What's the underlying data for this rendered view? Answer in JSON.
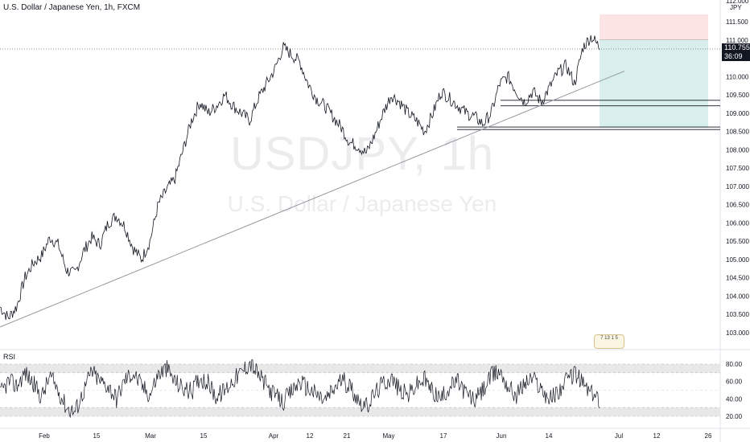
{
  "header": {
    "title": "U.S. Dollar / Japanese Yen, 1h, FXCM"
  },
  "watermark": {
    "symbol": "USDJPY, 1h",
    "name": "U.S. Dollar / Japanese Yen"
  },
  "price_tag": {
    "price": "110.755",
    "countdown": "36:09"
  },
  "rsi": {
    "label": "RSI"
  },
  "corner_labels": [
    "112.000",
    "JPY"
  ],
  "badge": {
    "text": "7 13 1 5"
  },
  "colors": {
    "risk_zone": "#fce4e5",
    "reward_zone": "#d9efee",
    "series": "#131722",
    "rsi_band": "#e8e8e8"
  },
  "chart_data": [
    {
      "type": "line",
      "title": "U.S. Dollar / Japanese Yen, 1h, FXCM",
      "ylim": [
        102.5,
        112.0
      ],
      "y_ticks": [
        103.0,
        103.5,
        104.0,
        104.5,
        105.0,
        105.5,
        106.0,
        106.5,
        107.0,
        107.5,
        108.0,
        108.5,
        109.0,
        109.5,
        110.0,
        110.5,
        111.0,
        111.5
      ],
      "y_tick_labels": [
        "103.000",
        "103.500",
        "104.000",
        "104.500",
        "105.000",
        "105.500",
        "106.000",
        "106.500",
        "107.000",
        "107.500",
        "108.000",
        "108.500",
        "109.000",
        "109.500",
        "110.000",
        "110.500",
        "111.000",
        "111.500"
      ],
      "x_tick_labels": [
        "Feb",
        "15",
        "Mar",
        "15",
        "Apr",
        "12",
        "21",
        "May",
        "17",
        "Jun",
        "14",
        "Jul",
        "12",
        "26"
      ],
      "series": [
        {
          "values": [
            103.7,
            103.4,
            103.7,
            104.5,
            104.9,
            105.1,
            105.6,
            105.4,
            104.7,
            104.6,
            105.2,
            105.6,
            105.4,
            106.0,
            106.2,
            105.9,
            105.3,
            105.0,
            105.5,
            106.5,
            106.9,
            107.2,
            108.0,
            108.8,
            109.3,
            109.0,
            109.2,
            109.5,
            109.2,
            109.0,
            108.8,
            109.4,
            109.8,
            110.2,
            110.8,
            110.6,
            110.4,
            109.8,
            109.4,
            109.2,
            108.9,
            108.6,
            108.2,
            108.1,
            107.9,
            108.4,
            109.0,
            109.5,
            109.3,
            109.0,
            108.8,
            108.5,
            109.0,
            109.6,
            109.4,
            109.2,
            109.0,
            108.9,
            108.7,
            109.0,
            109.8,
            110.0,
            109.6,
            109.3,
            109.6,
            109.3,
            109.7,
            110.1,
            110.3,
            109.8,
            110.8,
            111.1,
            110.8
          ]
        }
      ],
      "overlays": {
        "trendline": {
          "from": [
            "Feb",
            103.15
          ],
          "to": [
            "Jun 26",
            110.15
          ]
        },
        "current_price": 110.755,
        "support_lines": [
          109.35,
          109.2,
          108.62,
          108.55
        ],
        "long_position": {
          "entry": 111.0,
          "stop": 111.7,
          "target": 108.6
        }
      }
    },
    {
      "type": "line",
      "title": "RSI",
      "ylim": [
        14,
        90
      ],
      "y_ticks": [
        20,
        40,
        60,
        80
      ],
      "y_tick_labels": [
        "20.00",
        "40.00",
        "60.00",
        "80.00"
      ],
      "bands": [
        [
          70,
          80
        ],
        [
          20,
          30
        ]
      ],
      "series": [
        {
          "values": [
            45,
            60,
            55,
            70,
            58,
            42,
            66,
            50,
            30,
            25,
            48,
            72,
            60,
            55,
            40,
            62,
            70,
            55,
            45,
            68,
            75,
            60,
            52,
            48,
            65,
            58,
            42,
            50,
            62,
            70,
            82,
            68,
            55,
            44,
            36,
            48,
            60,
            52,
            45,
            38,
            50,
            62,
            55,
            40,
            30,
            46,
            58,
            64,
            50,
            44,
            56,
            62,
            48,
            40,
            54,
            60,
            46,
            38,
            50,
            66,
            72,
            55,
            44,
            58,
            64,
            52,
            40,
            48,
            60,
            70,
            58,
            46,
            40
          ]
        }
      ]
    }
  ]
}
